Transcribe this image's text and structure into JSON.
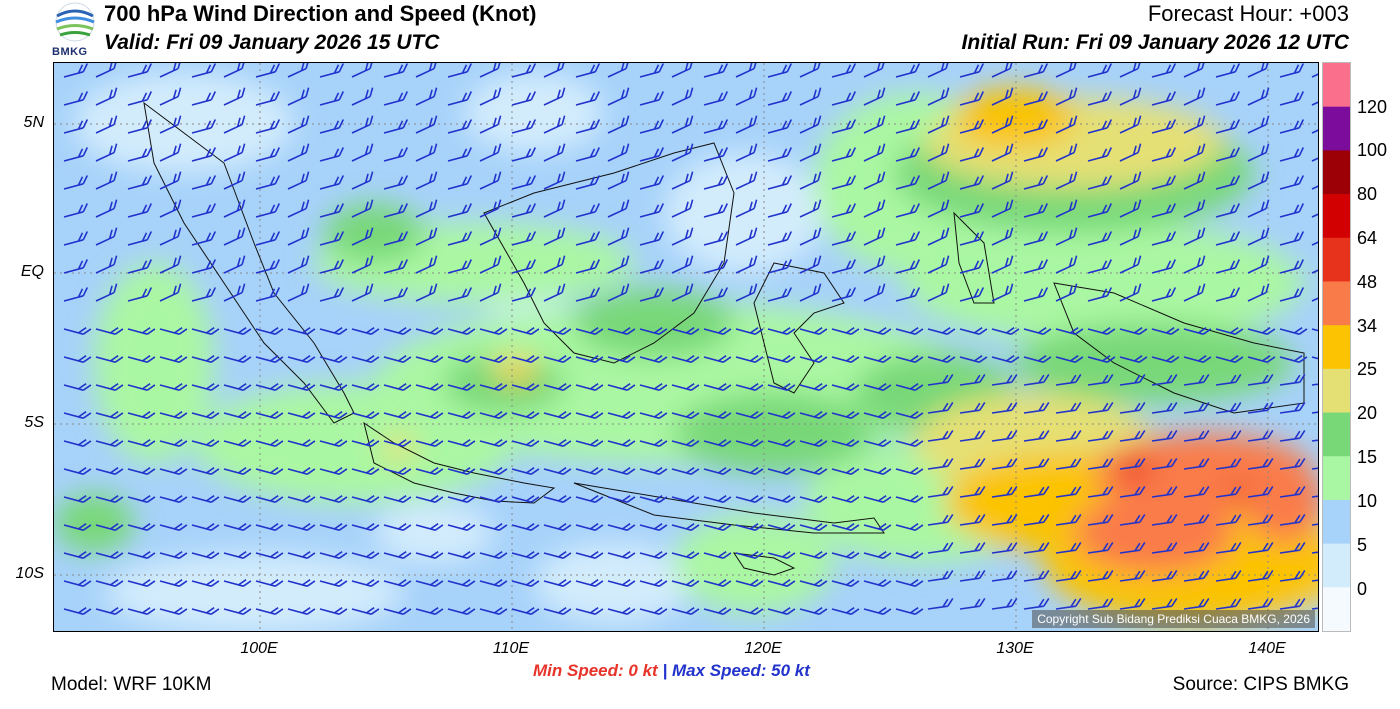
{
  "header": {
    "title": "700 hPa Wind Direction and Speed (Knot)",
    "valid": "Valid: Fri 09 January 2026 15 UTC",
    "forecast_hour": "Forecast Hour: +003",
    "initial_run": "Initial Run: Fri 09 January 2026 12 UTC",
    "logo_text": "BMKG"
  },
  "axes": {
    "lat_labels": [
      "5N",
      "EQ",
      "5S",
      "10S"
    ],
    "lon_labels": [
      "100E",
      "110E",
      "120E",
      "130E",
      "140E"
    ]
  },
  "colorbar": {
    "labels": [
      "120",
      "100",
      "80",
      "64",
      "48",
      "34",
      "25",
      "20",
      "15",
      "10",
      "5",
      "0"
    ],
    "colors": [
      "#fa6f8c",
      "#7b0c9c",
      "#9c0006",
      "#d20000",
      "#e8331c",
      "#fa7b4a",
      "#fbc302",
      "#e5e074",
      "#78d878",
      "#aaf7a3",
      "#a7d2fa",
      "#d3ecfc",
      "#f5fafe"
    ]
  },
  "speed": {
    "min_label": "Min Speed:",
    "min_value": "0 kt",
    "separator": "|",
    "max_label": "Max Speed:",
    "max_value": "50 kt"
  },
  "footer": {
    "model": "Model: WRF 10KM",
    "source": "Source: CIPS BMKG",
    "copyright": "Copyright Sub Bidang Prediksi Cuaca BMKG, 2026"
  }
}
